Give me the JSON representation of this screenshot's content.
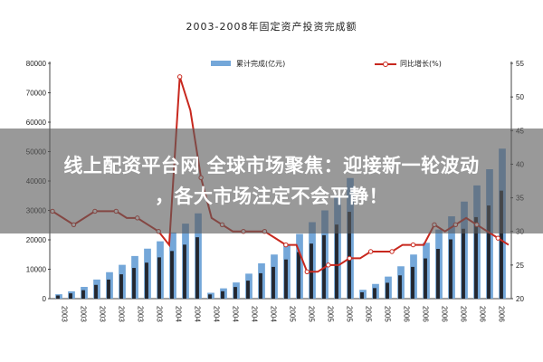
{
  "chart_data": {
    "type": "bar+line",
    "title": "2003-2008年固定资产投资完成额",
    "series": [
      {
        "name": "累计完成(亿元)",
        "kind": "bar",
        "values": [
          1500,
          2500,
          4000,
          6500,
          9000,
          11500,
          14500,
          17000,
          19500,
          22500,
          25500,
          29000,
          2000,
          3500,
          5500,
          8500,
          12000,
          15000,
          18500,
          22000,
          26000,
          30000,
          35000,
          41000,
          3000,
          5000,
          7500,
          11000,
          15000,
          19000,
          23500,
          28000,
          33000,
          38500,
          44000,
          51000
        ]
      },
      {
        "name": "同比增长(%)",
        "kind": "line",
        "values": [
          33,
          32,
          31,
          32,
          33,
          33,
          33,
          32,
          32,
          31,
          30,
          28,
          53,
          48,
          38,
          32,
          31,
          30,
          30,
          30,
          30,
          29,
          28,
          28,
          24,
          24,
          25,
          25,
          26,
          26,
          27,
          27,
          27,
          28,
          28,
          28,
          31,
          30,
          31,
          32,
          31,
          30,
          29,
          28
        ]
      }
    ],
    "x_tick_labels": [
      "2003",
      "2003",
      "2003",
      "2003",
      "2003",
      "2003",
      "2004",
      "2004",
      "2004",
      "2004",
      "2004",
      "2004",
      "2005",
      "2005",
      "2005",
      "2005",
      "2005",
      "2005",
      "2006",
      "2006",
      "2006",
      "2006",
      "2006",
      "2006"
    ],
    "y_left_ticks": [
      "80000",
      "70000",
      "60000",
      "50000",
      "40000",
      "30000",
      "20000",
      "10000",
      "0"
    ],
    "y_right_ticks": [
      "55",
      "50",
      "45",
      "40",
      "35",
      "30",
      "25",
      "20"
    ],
    "ylim_left": [
      0,
      80000
    ],
    "ylim_right": [
      20,
      55
    ],
    "colors": {
      "bar_dark": "#23262e",
      "bar_light": "#74a7d9",
      "line": "#c8281e",
      "banner_bg": "#5a5a5a"
    },
    "overlay": {
      "lines": [
        "线上配资平台网 全球市场聚焦：迎接新一轮波动",
        "，各大市场注定不会平静！"
      ]
    }
  }
}
